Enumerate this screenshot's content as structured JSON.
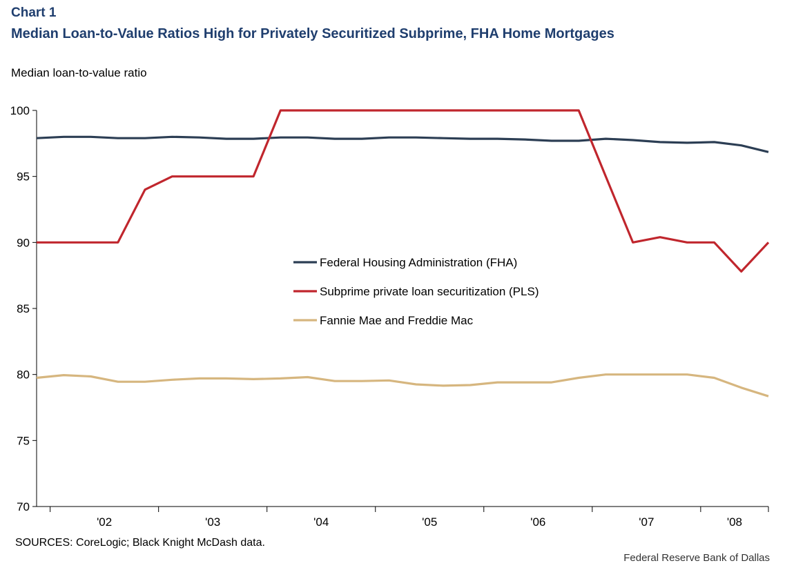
{
  "header": {
    "chart_number": "Chart 1",
    "title": "Median Loan-to-Value Ratios High for Privately Securitized Subprime, FHA Home Mortgages"
  },
  "footer": {
    "sources": "SOURCES: CoreLogic; Black Knight McDash data.",
    "credit": "Federal Reserve Bank of Dallas"
  },
  "chart_data": {
    "type": "line",
    "ylabel": "Median loan-to-value ratio",
    "ylim": [
      70,
      100
    ],
    "yticks": [
      70,
      75,
      80,
      85,
      90,
      95,
      100
    ],
    "x_ticklabels": [
      "'02",
      "'03",
      "'04",
      "'05",
      "'06",
      "'07",
      "'08"
    ],
    "x_quarters": [
      "2001Q4",
      "2002Q1",
      "2002Q2",
      "2002Q3",
      "2002Q4",
      "2003Q1",
      "2003Q2",
      "2003Q3",
      "2003Q4",
      "2004Q1",
      "2004Q2",
      "2004Q3",
      "2004Q4",
      "2005Q1",
      "2005Q2",
      "2005Q3",
      "2005Q4",
      "2006Q1",
      "2006Q2",
      "2006Q3",
      "2006Q4",
      "2007Q1",
      "2007Q2",
      "2007Q3",
      "2007Q4",
      "2008Q1",
      "2008Q2",
      "2008Q3"
    ],
    "grid": false,
    "legend_position": "center",
    "series": [
      {
        "name": "Federal Housing Administration (FHA)",
        "color": "#2c3e54",
        "values": [
          97.9,
          98.0,
          98.0,
          97.9,
          97.9,
          98.0,
          97.95,
          97.85,
          97.85,
          97.95,
          97.95,
          97.85,
          97.85,
          97.95,
          97.95,
          97.9,
          97.85,
          97.85,
          97.8,
          97.7,
          97.7,
          97.85,
          97.75,
          97.6,
          97.55,
          97.6,
          97.35,
          96.85
        ]
      },
      {
        "name": "Subprime private loan securitization (PLS)",
        "color": "#c0262d",
        "values": [
          90,
          90,
          90,
          90,
          94,
          95,
          95,
          95,
          95,
          100,
          100,
          100,
          100,
          100,
          100,
          100,
          100,
          100,
          100,
          100,
          100,
          95,
          90,
          90.4,
          90,
          90,
          87.8,
          90
        ]
      },
      {
        "name": "Fannie Mae and Freddie Mac",
        "color": "#d6b67f",
        "values": [
          79.75,
          79.95,
          79.85,
          79.45,
          79.45,
          79.6,
          79.7,
          79.7,
          79.65,
          79.7,
          79.8,
          79.5,
          79.5,
          79.55,
          79.25,
          79.15,
          79.2,
          79.4,
          79.4,
          79.4,
          79.75,
          80.0,
          80.0,
          80.0,
          80.0,
          79.75,
          79.0,
          78.35
        ]
      }
    ]
  }
}
